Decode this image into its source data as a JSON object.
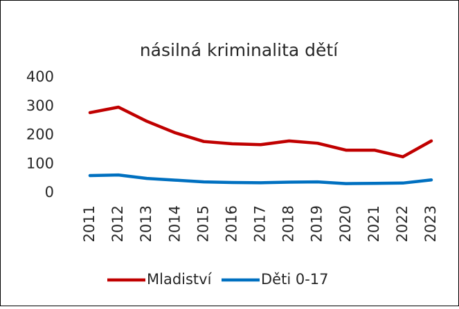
{
  "chart_data": {
    "type": "line",
    "title": "násilná kriminalita dětí",
    "categories": [
      "2011",
      "2012",
      "2013",
      "2014",
      "2015",
      "2016",
      "2017",
      "2018",
      "2019",
      "2020",
      "2021",
      "2022",
      "2023"
    ],
    "series": [
      {
        "name": "Mladiství",
        "color": "#c00000",
        "values": [
          278,
          297,
          248,
          208,
          178,
          170,
          167,
          180,
          172,
          148,
          148,
          125,
          180
        ]
      },
      {
        "name": "Děti 0-17",
        "color": "#0070c0",
        "values": [
          60,
          62,
          50,
          44,
          38,
          36,
          35,
          37,
          38,
          32,
          33,
          34,
          45
        ]
      }
    ],
    "ylim": [
      0,
      400
    ],
    "yticks": [
      0,
      100,
      200,
      300,
      400
    ],
    "grid": false,
    "legend": "bottom"
  }
}
